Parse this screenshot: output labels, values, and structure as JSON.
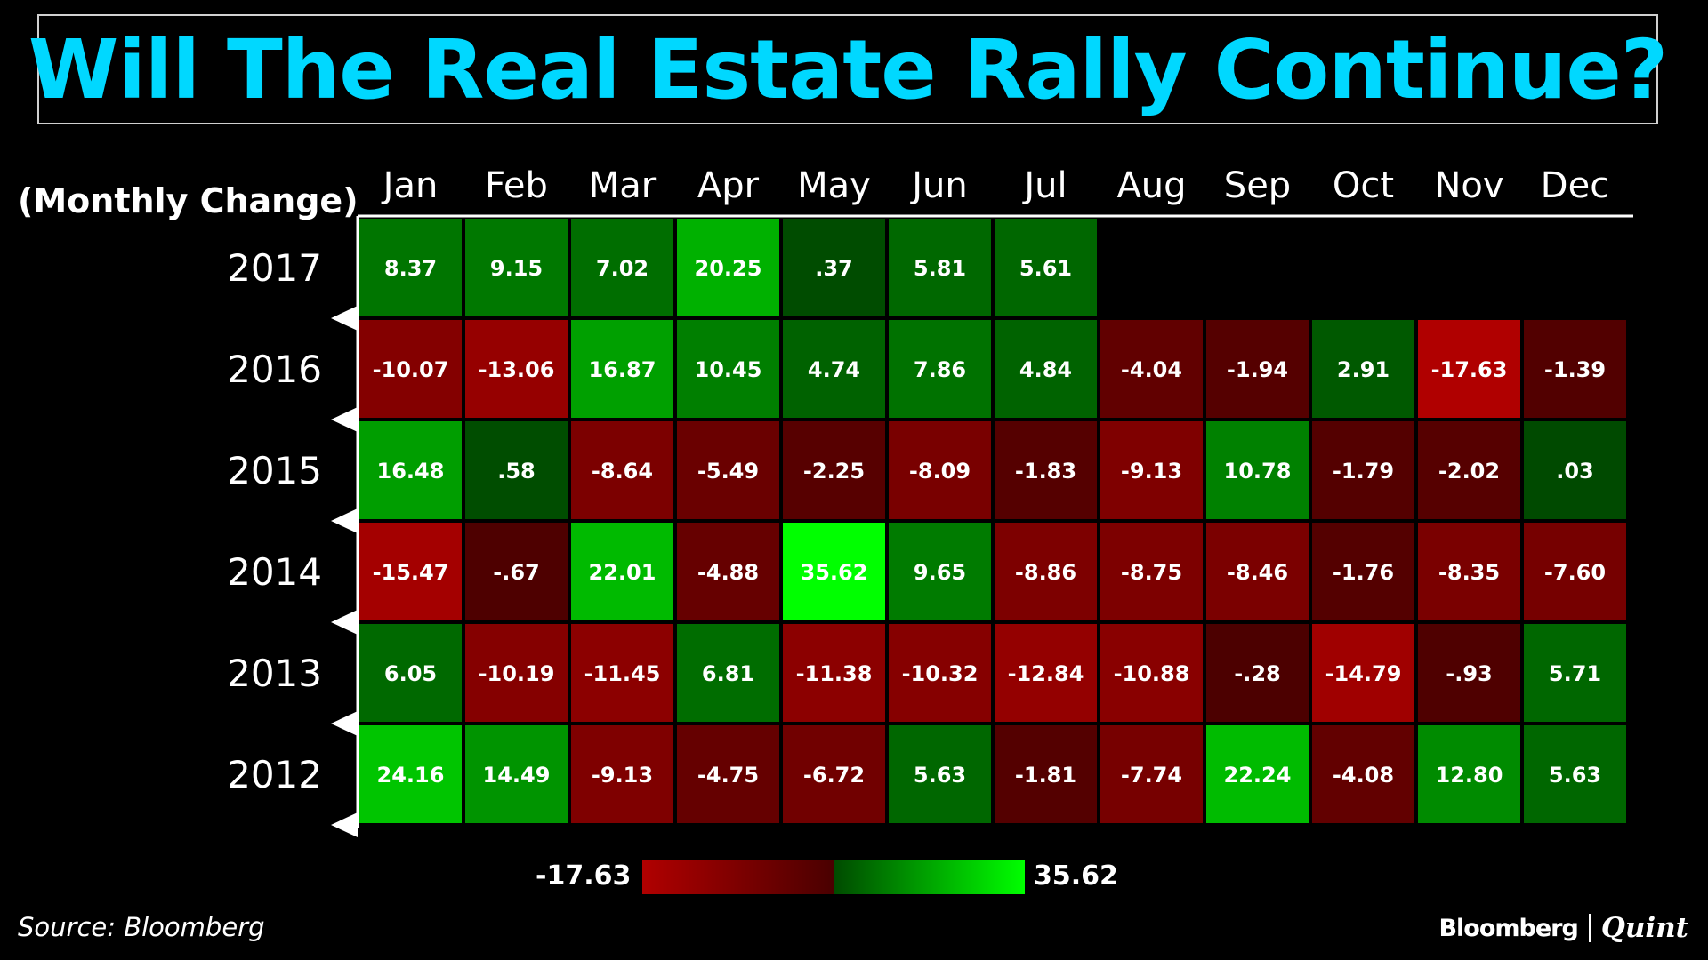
{
  "header": {
    "title": "Will The Real Estate Rally Continue?",
    "unit_label": "(Monthly Change)"
  },
  "chart_data": {
    "type": "heatmap",
    "months": [
      "Jan",
      "Feb",
      "Mar",
      "Apr",
      "May",
      "Jun",
      "Jul",
      "Aug",
      "Sep",
      "Oct",
      "Nov",
      "Dec"
    ],
    "rows": [
      {
        "year": "2017",
        "values": [
          8.37,
          9.15,
          7.02,
          20.25,
          0.37,
          5.81,
          5.61,
          null,
          null,
          null,
          null,
          null
        ],
        "labels": [
          "8.37",
          "9.15",
          "7.02",
          "20.25",
          ".37",
          "5.81",
          "5.61",
          "",
          "",
          "",
          "",
          ""
        ]
      },
      {
        "year": "2016",
        "values": [
          -10.07,
          -13.06,
          16.87,
          10.45,
          4.74,
          7.86,
          4.84,
          -4.04,
          -1.94,
          2.91,
          -17.63,
          -1.39
        ],
        "labels": [
          "-10.07",
          "-13.06",
          "16.87",
          "10.45",
          "4.74",
          "7.86",
          "4.84",
          "-4.04",
          "-1.94",
          "2.91",
          "-17.63",
          "-1.39"
        ]
      },
      {
        "year": "2015",
        "values": [
          16.48,
          0.58,
          -8.64,
          -5.49,
          -2.25,
          -8.09,
          -1.83,
          -9.13,
          10.78,
          -1.79,
          -2.02,
          0.03
        ],
        "labels": [
          "16.48",
          ".58",
          "-8.64",
          "-5.49",
          "-2.25",
          "-8.09",
          "-1.83",
          "-9.13",
          "10.78",
          "-1.79",
          "-2.02",
          ".03"
        ]
      },
      {
        "year": "2014",
        "values": [
          -15.47,
          -0.67,
          22.01,
          -4.88,
          35.62,
          9.65,
          -8.86,
          -8.75,
          -8.46,
          -1.76,
          -8.35,
          -7.6
        ],
        "labels": [
          "-15.47",
          "-.67",
          "22.01",
          "-4.88",
          "35.62",
          "9.65",
          "-8.86",
          "-8.75",
          "-8.46",
          "-1.76",
          "-8.35",
          "-7.60"
        ]
      },
      {
        "year": "2013",
        "values": [
          6.05,
          -10.19,
          -11.45,
          6.81,
          -11.38,
          -10.32,
          -12.84,
          -10.88,
          -0.28,
          -14.79,
          -0.93,
          5.71
        ],
        "labels": [
          "6.05",
          "-10.19",
          "-11.45",
          "6.81",
          "-11.38",
          "-10.32",
          "-12.84",
          "-10.88",
          "-.28",
          "-14.79",
          "-.93",
          "5.71"
        ]
      },
      {
        "year": "2012",
        "values": [
          24.16,
          14.49,
          -9.13,
          -4.75,
          -6.72,
          5.63,
          -1.81,
          -7.74,
          22.24,
          -4.08,
          12.8,
          5.63
        ],
        "labels": [
          "24.16",
          "14.49",
          "-9.13",
          "-4.75",
          "-6.72",
          "5.63",
          "-1.81",
          "-7.74",
          "22.24",
          "-4.08",
          "12.80",
          "5.63"
        ]
      }
    ],
    "color_scale": {
      "min": -17.63,
      "max": 35.62,
      "min_label": "-17.63",
      "max_label": "35.62",
      "colors": {
        "neg_strong": "#b00000",
        "neg_weak": "#4a0000",
        "pos_weak": "#004a00",
        "pos_strong": "#00ff00"
      }
    }
  },
  "footer": {
    "source": "Source: Bloomberg",
    "brand_primary": "Bloomberg",
    "brand_secondary": "Quint"
  }
}
